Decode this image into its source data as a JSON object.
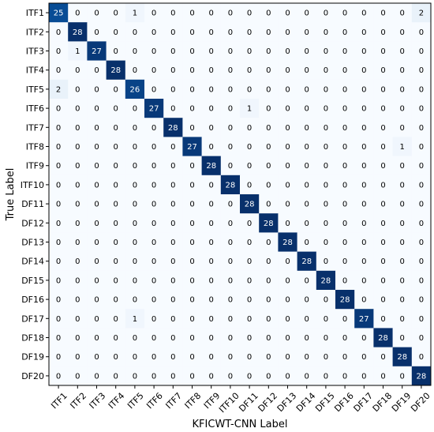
{
  "chart_data": {
    "type": "heatmap",
    "title": "",
    "xlabel": "KFICWT-CNN Label",
    "ylabel": "True Label",
    "x_categories": [
      "ITF1",
      "ITF2",
      "ITF3",
      "ITF4",
      "ITF5",
      "ITF6",
      "ITF7",
      "ITF8",
      "ITF9",
      "ITF10",
      "DF11",
      "DF12",
      "DF13",
      "DF14",
      "DF15",
      "DF16",
      "DF17",
      "DF18",
      "DF19",
      "DF20"
    ],
    "y_categories": [
      "ITF1",
      "ITF2",
      "ITF3",
      "ITF4",
      "ITF5",
      "ITF6",
      "ITF7",
      "ITF8",
      "ITF9",
      "ITF10",
      "DF11",
      "DF12",
      "DF13",
      "DF14",
      "DF15",
      "DF16",
      "DF17",
      "DF18",
      "DF19",
      "DF20"
    ],
    "values": [
      [
        25,
        0,
        0,
        0,
        1,
        0,
        0,
        0,
        0,
        0,
        0,
        0,
        0,
        0,
        0,
        0,
        0,
        0,
        0,
        2
      ],
      [
        0,
        28,
        0,
        0,
        0,
        0,
        0,
        0,
        0,
        0,
        0,
        0,
        0,
        0,
        0,
        0,
        0,
        0,
        0,
        0
      ],
      [
        0,
        1,
        27,
        0,
        0,
        0,
        0,
        0,
        0,
        0,
        0,
        0,
        0,
        0,
        0,
        0,
        0,
        0,
        0,
        0
      ],
      [
        0,
        0,
        0,
        28,
        0,
        0,
        0,
        0,
        0,
        0,
        0,
        0,
        0,
        0,
        0,
        0,
        0,
        0,
        0,
        0
      ],
      [
        2,
        0,
        0,
        0,
        26,
        0,
        0,
        0,
        0,
        0,
        0,
        0,
        0,
        0,
        0,
        0,
        0,
        0,
        0,
        0
      ],
      [
        0,
        0,
        0,
        0,
        0,
        27,
        0,
        0,
        0,
        0,
        1,
        0,
        0,
        0,
        0,
        0,
        0,
        0,
        0,
        0
      ],
      [
        0,
        0,
        0,
        0,
        0,
        0,
        28,
        0,
        0,
        0,
        0,
        0,
        0,
        0,
        0,
        0,
        0,
        0,
        0,
        0
      ],
      [
        0,
        0,
        0,
        0,
        0,
        0,
        0,
        27,
        0,
        0,
        0,
        0,
        0,
        0,
        0,
        0,
        0,
        0,
        1,
        0
      ],
      [
        0,
        0,
        0,
        0,
        0,
        0,
        0,
        0,
        28,
        0,
        0,
        0,
        0,
        0,
        0,
        0,
        0,
        0,
        0,
        0
      ],
      [
        0,
        0,
        0,
        0,
        0,
        0,
        0,
        0,
        0,
        28,
        0,
        0,
        0,
        0,
        0,
        0,
        0,
        0,
        0,
        0
      ],
      [
        0,
        0,
        0,
        0,
        0,
        0,
        0,
        0,
        0,
        0,
        28,
        0,
        0,
        0,
        0,
        0,
        0,
        0,
        0,
        0
      ],
      [
        0,
        0,
        0,
        0,
        0,
        0,
        0,
        0,
        0,
        0,
        0,
        28,
        0,
        0,
        0,
        0,
        0,
        0,
        0,
        0
      ],
      [
        0,
        0,
        0,
        0,
        0,
        0,
        0,
        0,
        0,
        0,
        0,
        0,
        28,
        0,
        0,
        0,
        0,
        0,
        0,
        0
      ],
      [
        0,
        0,
        0,
        0,
        0,
        0,
        0,
        0,
        0,
        0,
        0,
        0,
        0,
        28,
        0,
        0,
        0,
        0,
        0,
        0
      ],
      [
        0,
        0,
        0,
        0,
        0,
        0,
        0,
        0,
        0,
        0,
        0,
        0,
        0,
        0,
        28,
        0,
        0,
        0,
        0,
        0
      ],
      [
        0,
        0,
        0,
        0,
        0,
        0,
        0,
        0,
        0,
        0,
        0,
        0,
        0,
        0,
        0,
        28,
        0,
        0,
        0,
        0
      ],
      [
        0,
        0,
        0,
        0,
        1,
        0,
        0,
        0,
        0,
        0,
        0,
        0,
        0,
        0,
        0,
        0,
        27,
        0,
        0,
        0
      ],
      [
        0,
        0,
        0,
        0,
        0,
        0,
        0,
        0,
        0,
        0,
        0,
        0,
        0,
        0,
        0,
        0,
        0,
        28,
        0,
        0
      ],
      [
        0,
        0,
        0,
        0,
        0,
        0,
        0,
        0,
        0,
        0,
        0,
        0,
        0,
        0,
        0,
        0,
        0,
        0,
        28,
        0
      ],
      [
        0,
        0,
        0,
        0,
        0,
        0,
        0,
        0,
        0,
        0,
        0,
        0,
        0,
        0,
        0,
        0,
        0,
        0,
        0,
        28
      ]
    ],
    "value_range": [
      0,
      28
    ],
    "colormap": "Blues",
    "color_low": "#f7fbff",
    "color_high": "#08306b",
    "text_color_light": "#ffffff",
    "text_color_dark": "#000000",
    "grid": false,
    "legend": "none"
  }
}
